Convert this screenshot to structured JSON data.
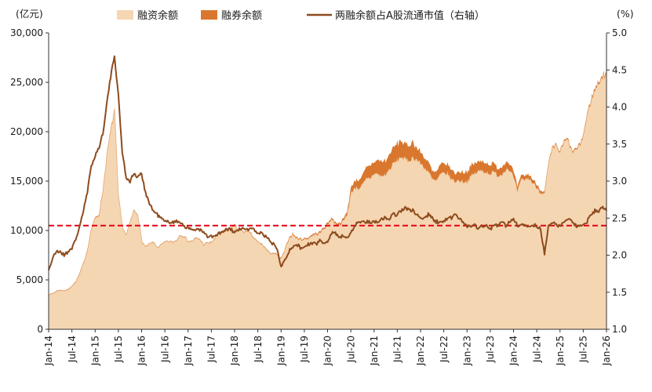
{
  "chart_data": {
    "type": "combo",
    "title": "",
    "axis_units": {
      "left": "(亿元)",
      "right": "(%)"
    },
    "legend_position": "top",
    "grid": false,
    "x_unit": "month",
    "x_tick_every": 6,
    "x_tick_labels": [
      "Jan-14",
      "Jul-14",
      "Jan-15",
      "Jul-15",
      "Jan-16",
      "Jul-16",
      "Jan-17",
      "Jul-17",
      "Jan-18",
      "Jul-18",
      "Jan-19",
      "Jul-19",
      "Jan-20",
      "Jul-20",
      "Jan-21",
      "Jul-21",
      "Jan-22",
      "Jul-22",
      "Jan-23",
      "Jul-23",
      "Jan-24",
      "Jul-24",
      "Jan-25",
      "Jul-25",
      "Jan-26"
    ],
    "left_axis": {
      "unit": "亿元",
      "min": 0,
      "max": 30000,
      "ticks": [
        "0",
        "5,000",
        "10,000",
        "15,000",
        "20,000",
        "25,000",
        "30,000"
      ]
    },
    "right_axis": {
      "unit": "%",
      "min": 1.0,
      "max": 5.0,
      "ticks": [
        "1.0",
        "1.5",
        "2.0",
        "2.5",
        "3.0",
        "3.5",
        "4.0",
        "4.5",
        "5.0"
      ]
    },
    "reference_line": {
      "value": 2.4,
      "axis": "right",
      "color": "#e60012",
      "style": "dashed"
    },
    "series": [
      {
        "name": "融资余额",
        "type": "area",
        "axis": "left",
        "stack": true,
        "color": "#f5d6b2",
        "stroke": "#e8b98c",
        "values": [
          3500,
          3600,
          3850,
          3950,
          3900,
          4000,
          4400,
          4800,
          5600,
          6700,
          8000,
          10100,
          11200,
          11600,
          14000,
          17500,
          20000,
          22200,
          13500,
          10500,
          9500,
          10800,
          12000,
          11700,
          9000,
          8300,
          8600,
          8800,
          8300,
          8500,
          8800,
          8900,
          8800,
          9000,
          9600,
          9400,
          8900,
          8900,
          9200,
          9100,
          8600,
          8700,
          8800,
          9200,
          9800,
          9900,
          10000,
          10200,
          10600,
          10000,
          10000,
          9800,
          9800,
          9200,
          8800,
          8600,
          8200,
          7700,
          7700,
          7500,
          7100,
          8000,
          9200,
          9600,
          9200,
          9100,
          9100,
          9200,
          9500,
          9600,
          9700,
          10200,
          10600,
          11200,
          10700,
          10600,
          10900,
          11600,
          13700,
          14400,
          14300,
          14600,
          15200,
          15300,
          15800,
          15700,
          15500,
          15700,
          16200,
          16800,
          17100,
          17500,
          17200,
          17100,
          17400,
          17200,
          16800,
          16400,
          16000,
          15200,
          15000,
          15600,
          15800,
          15800,
          15200,
          15000,
          15100,
          15000,
          15000,
          15500,
          15800,
          16000,
          16100,
          15900,
          15800,
          15900,
          15600,
          15700,
          16300,
          16200,
          15400,
          14000,
          15100,
          15200,
          15300,
          14800,
          14400,
          13900,
          13700,
          16600,
          18200,
          18600,
          17900,
          18900,
          19200,
          18000,
          18100,
          18500,
          19600,
          21600,
          23200,
          24200,
          25000,
          25600,
          25800
        ]
      },
      {
        "name": "融券余额",
        "type": "area",
        "axis": "left",
        "stack": true,
        "color": "#d9772e",
        "stroke": "#d9772e",
        "values": [
          40,
          40,
          40,
          40,
          40,
          40,
          40,
          50,
          60,
          60,
          70,
          80,
          80,
          80,
          80,
          90,
          90,
          90,
          40,
          30,
          30,
          30,
          40,
          40,
          30,
          30,
          30,
          30,
          30,
          30,
          30,
          30,
          30,
          30,
          40,
          40,
          40,
          40,
          40,
          40,
          40,
          40,
          40,
          40,
          40,
          40,
          40,
          40,
          40,
          40,
          40,
          50,
          50,
          50,
          50,
          50,
          50,
          50,
          60,
          70,
          70,
          80,
          90,
          100,
          100,
          100,
          100,
          110,
          120,
          130,
          140,
          140,
          140,
          150,
          160,
          180,
          200,
          300,
          500,
          700,
          800,
          900,
          1200,
          1300,
          1200,
          1400,
          1450,
          1450,
          1500,
          1600,
          1700,
          1650,
          1550,
          1500,
          1550,
          1200,
          1100,
          1000,
          950,
          800,
          850,
          950,
          950,
          950,
          900,
          850,
          900,
          950,
          950,
          1000,
          1000,
          950,
          950,
          900,
          900,
          850,
          750,
          750,
          750,
          700,
          550,
          430,
          420,
          410,
          400,
          350,
          300,
          250,
          130,
          110,
          100,
          100,
          100,
          110,
          120,
          120,
          120,
          130,
          140,
          150,
          160,
          170,
          170,
          170,
          170
        ]
      },
      {
        "name": "两融余额占A股流通市值（右轴）",
        "type": "line",
        "axis": "right",
        "color": "#8e4b1e",
        "values": [
          1.8,
          1.95,
          2.05,
          2.05,
          2.0,
          2.05,
          2.1,
          2.2,
          2.4,
          2.6,
          2.85,
          3.2,
          3.35,
          3.45,
          3.65,
          4.05,
          4.4,
          4.7,
          4.15,
          3.4,
          3.05,
          3.0,
          3.1,
          3.05,
          3.1,
          2.85,
          2.7,
          2.6,
          2.55,
          2.5,
          2.45,
          2.45,
          2.45,
          2.45,
          2.45,
          2.4,
          2.35,
          2.35,
          2.35,
          2.35,
          2.3,
          2.25,
          2.25,
          2.25,
          2.3,
          2.3,
          2.35,
          2.35,
          2.3,
          2.35,
          2.35,
          2.35,
          2.35,
          2.35,
          2.3,
          2.3,
          2.25,
          2.2,
          2.15,
          2.1,
          1.85,
          1.95,
          2.05,
          2.1,
          2.15,
          2.1,
          2.1,
          2.15,
          2.15,
          2.15,
          2.2,
          2.15,
          2.2,
          2.3,
          2.3,
          2.25,
          2.25,
          2.25,
          2.3,
          2.4,
          2.45,
          2.45,
          2.45,
          2.45,
          2.45,
          2.45,
          2.5,
          2.5,
          2.5,
          2.55,
          2.55,
          2.6,
          2.65,
          2.6,
          2.6,
          2.55,
          2.5,
          2.5,
          2.55,
          2.5,
          2.45,
          2.45,
          2.45,
          2.5,
          2.5,
          2.55,
          2.5,
          2.45,
          2.4,
          2.4,
          2.4,
          2.35,
          2.4,
          2.4,
          2.35,
          2.4,
          2.4,
          2.45,
          2.4,
          2.45,
          2.5,
          2.4,
          2.4,
          2.4,
          2.4,
          2.4,
          2.4,
          2.35,
          2.0,
          2.4,
          2.45,
          2.4,
          2.4,
          2.45,
          2.5,
          2.45,
          2.4,
          2.4,
          2.4,
          2.45,
          2.55,
          2.6,
          2.6,
          2.65,
          2.6
        ]
      }
    ]
  }
}
